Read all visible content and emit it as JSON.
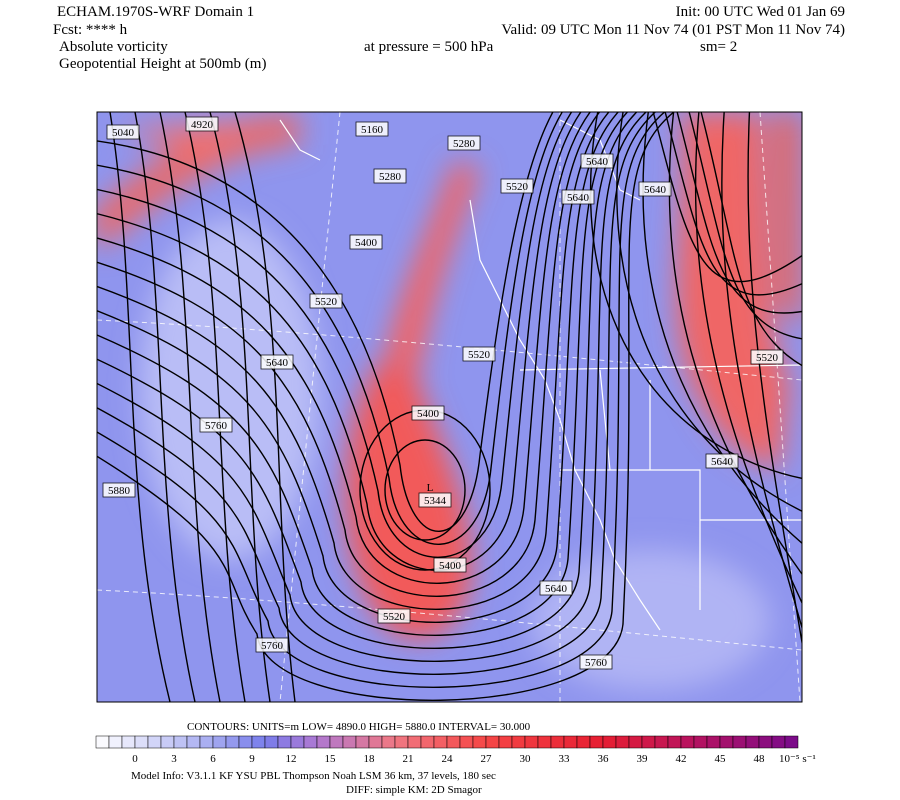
{
  "header": {
    "title": "ECHAM.1970S-WRF Domain 1",
    "init": "Init: 00 UTC Wed 01 Jan 69",
    "forecast": "Fcst: **** h",
    "valid": "Valid: 09 UTC Mon 11 Nov 74 (01 PST Mon 11 Nov 74)",
    "field": "Absolute vorticity",
    "pressure": "at pressure =  500 hPa",
    "smoothing": "sm= 2",
    "contour_field": "Geopotential Height at 500mb (m)"
  },
  "map": {
    "contour_labels": [
      "5040",
      "4920",
      "5160",
      "5280",
      "5280",
      "5520",
      "5640",
      "5640",
      "5640",
      "5400",
      "5520",
      "5640",
      "5520",
      "5760",
      "5400",
      "5344",
      "5880",
      "5400",
      "5640",
      "5520",
      "5760",
      "5760",
      "5520",
      "5640"
    ],
    "low_marker": "L"
  },
  "colorbar": {
    "contours": "CONTOURS:  UNITS=m  LOW=   4890.0      HIGH=  5880.0      INTERVAL=   30.000",
    "ticks": [
      "0",
      "3",
      "6",
      "9",
      "12",
      "15",
      "18",
      "21",
      "24",
      "27",
      "30",
      "33",
      "36",
      "39",
      "42",
      "45",
      "48"
    ],
    "unit": "10⁻⁵ s⁻¹"
  },
  "footer": {
    "model_info": "Model Info: V3.1.1    KF       YSU PBL   Thompson     Noah LSM   36 km,    37 levels,   180 sec",
    "diff": "DIFF: simple KM: 2D Smagor"
  }
}
